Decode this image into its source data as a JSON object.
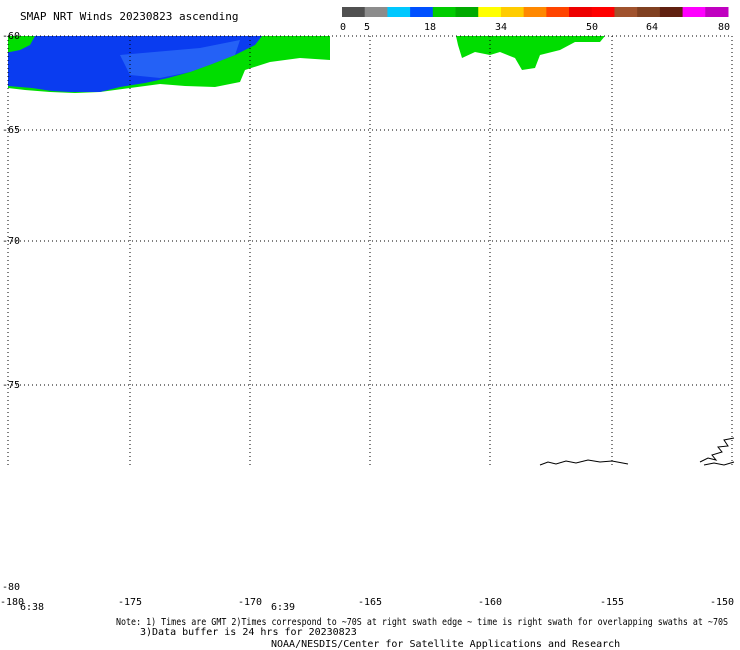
{
  "title": "SMAP NRT Winds 20230823 ascending",
  "colorbar": {
    "labels": [
      "0",
      "5",
      "18",
      "34",
      "50",
      "64",
      "80"
    ],
    "colors": [
      "#505050",
      "#8c8c8c",
      "#00c8ff",
      "#0050ff",
      "#00cc00",
      "#00aa00",
      "#ffff00",
      "#ffcc00",
      "#ff8800",
      "#ff4400",
      "#ee0000",
      "#ff0000",
      "#a0522d",
      "#804020",
      "#602010",
      "#ff00ff",
      "#c000c0"
    ]
  },
  "lat_labels": [
    "-60",
    "-65",
    "-70",
    "-75",
    "-80"
  ],
  "lon_labels": [
    "-180",
    "-175",
    "-170",
    "-165",
    "-160",
    "-155",
    "-150"
  ],
  "time_labels": [
    "6:38",
    "6:39"
  ],
  "notes": {
    "line1": "Note: 1) Times are GMT 2)Times correspond to ~70S at right swath edge ~ time is right swath for overlapping swaths at ~70S",
    "line2": "3)Data buffer is 24 hrs for 20230823",
    "line3": "NOAA/NESDIS/Center for Satellite Applications and Research"
  }
}
